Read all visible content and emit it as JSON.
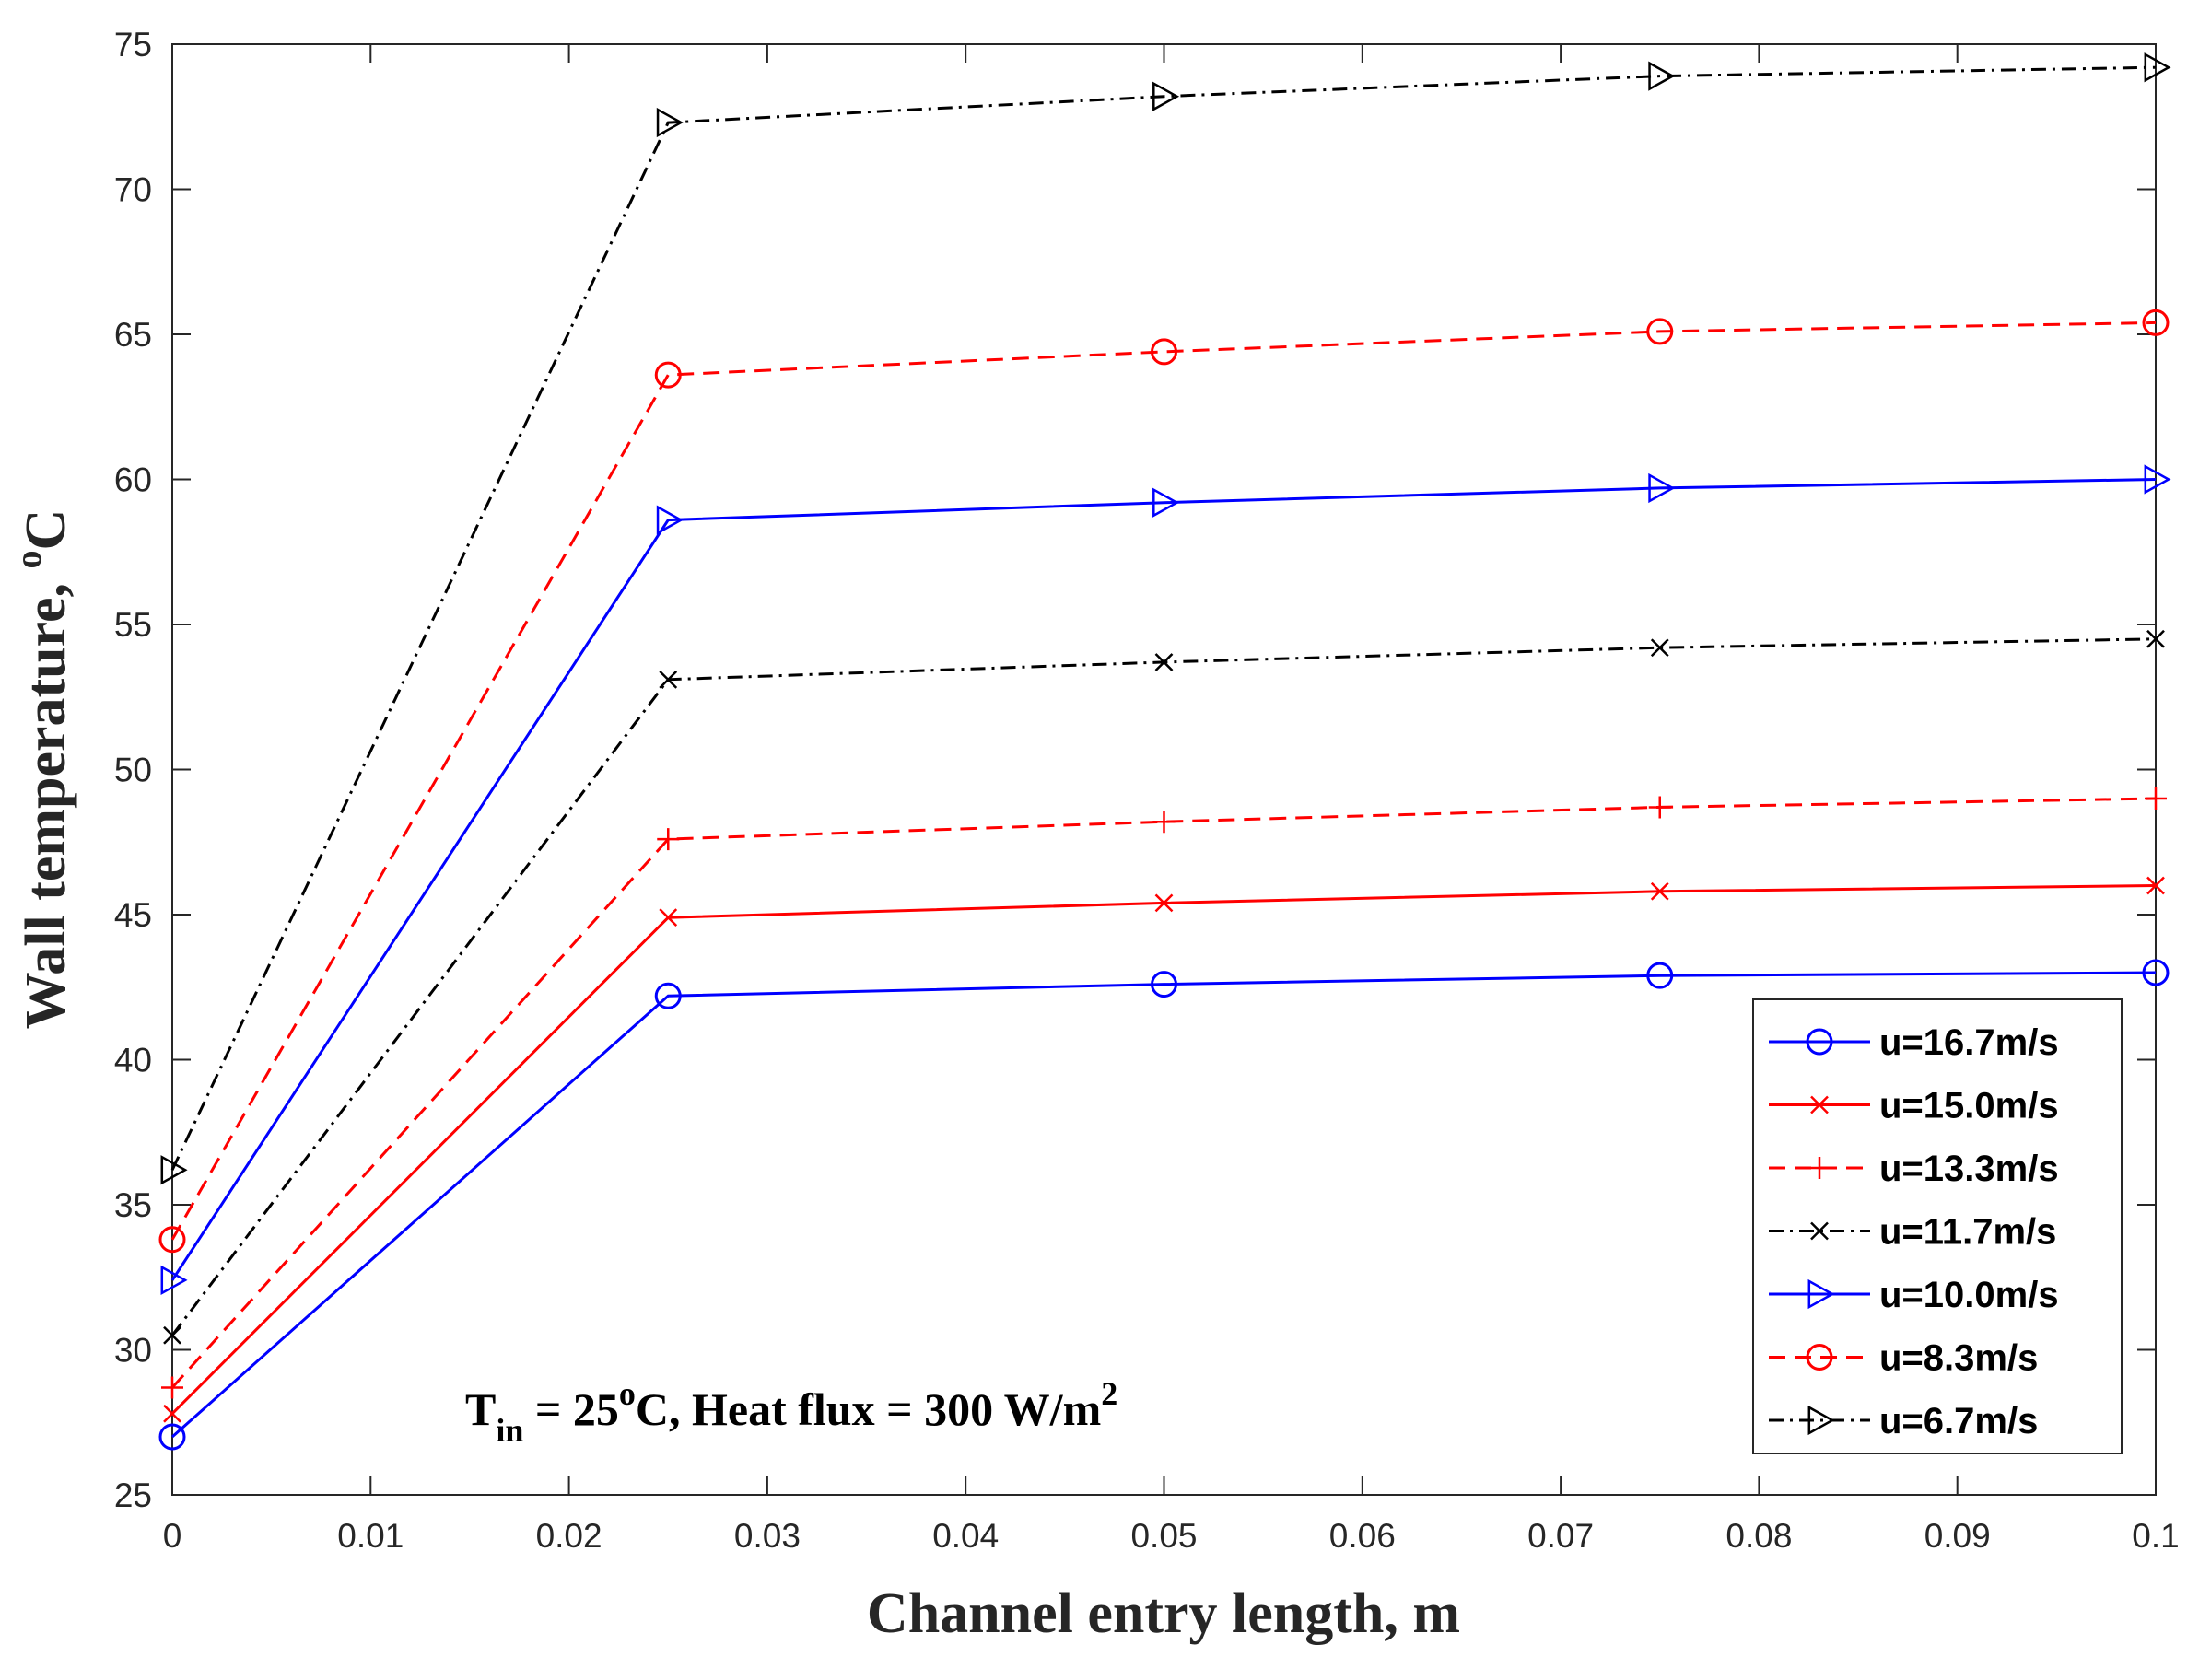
{
  "chart_data": {
    "type": "line",
    "title": "",
    "xlabel": "Channel entry length, m",
    "ylabel": {
      "text": "Wall temperature, ",
      "superscript": "o",
      "unit": "C"
    },
    "xlim": [
      0,
      0.1
    ],
    "ylim": [
      25,
      75
    ],
    "xticks": [
      0,
      0.01,
      0.02,
      0.03,
      0.04,
      0.05,
      0.06,
      0.07,
      0.08,
      0.09,
      0.1
    ],
    "xtick_labels": [
      "0",
      "0.01",
      "0.02",
      "0.03",
      "0.04",
      "0.05",
      "0.06",
      "0.07",
      "0.08",
      "0.09",
      "0.1"
    ],
    "yticks": [
      25,
      30,
      35,
      40,
      45,
      50,
      55,
      60,
      65,
      70,
      75
    ],
    "ytick_labels": [
      "25",
      "30",
      "35",
      "40",
      "45",
      "50",
      "55",
      "60",
      "65",
      "70",
      "75"
    ],
    "grid": false,
    "legend_position": "bottom-right",
    "x": [
      0,
      0.025,
      0.05,
      0.075,
      0.1
    ],
    "series": [
      {
        "name": "u=16.7m/s",
        "values": [
          27.0,
          42.2,
          42.6,
          42.9,
          43.0
        ],
        "color": "#0000ff",
        "dash": "solid",
        "marker": "circle"
      },
      {
        "name": "u=15.0m/s",
        "values": [
          27.8,
          44.9,
          45.4,
          45.8,
          46.0
        ],
        "color": "#ff0000",
        "dash": "solid",
        "marker": "x"
      },
      {
        "name": "u=13.3m/s",
        "values": [
          28.7,
          47.6,
          48.2,
          48.7,
          49.0
        ],
        "color": "#ff0000",
        "dash": "dashed",
        "marker": "plus"
      },
      {
        "name": "u=11.7m/s",
        "values": [
          30.5,
          53.1,
          53.7,
          54.2,
          54.5
        ],
        "color": "#000000",
        "dash": "dashdot",
        "marker": "x"
      },
      {
        "name": "u=10.0m/s",
        "values": [
          32.4,
          58.6,
          59.2,
          59.7,
          60.0
        ],
        "color": "#0000ff",
        "dash": "solid",
        "marker": "triangle-right"
      },
      {
        "name": "u=8.3m/s",
        "values": [
          33.8,
          63.6,
          64.4,
          65.1,
          65.4
        ],
        "color": "#ff0000",
        "dash": "dashed",
        "marker": "circle"
      },
      {
        "name": "u=6.7m/s",
        "values": [
          36.2,
          72.3,
          73.2,
          73.9,
          74.2
        ],
        "color": "#000000",
        "dash": "dashdot",
        "marker": "triangle-right"
      }
    ],
    "annotation": {
      "t_symbol": "T",
      "t_subscript": "in",
      "eq_value": " = 25",
      "deg_superscript": "o",
      "rest": "C, Heat flux = 300 W/m",
      "sq_superscript": "2"
    }
  }
}
